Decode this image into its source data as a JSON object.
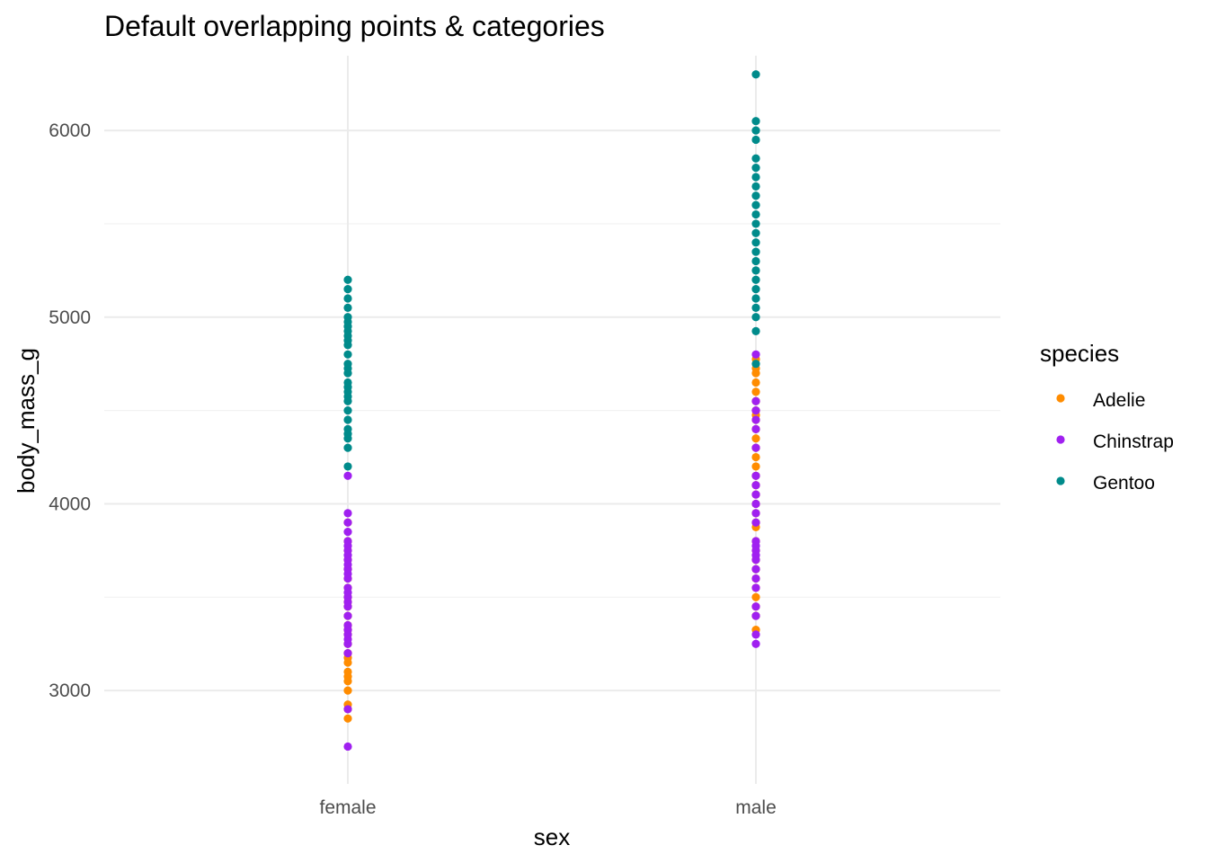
{
  "chart_data": {
    "type": "scatter",
    "title": "Default overlapping points & categories",
    "xlabel": "sex",
    "ylabel": "body_mass_g",
    "categories": [
      "female",
      "male"
    ],
    "ylim": [
      2500,
      6400
    ],
    "y_ticks": [
      3000,
      4000,
      5000,
      6000
    ],
    "grid": true,
    "legend": {
      "title": "species",
      "position": "right"
    },
    "series": [
      {
        "name": "Adelie",
        "color": "#FF8C00",
        "points": [
          {
            "x": "female",
            "y": 2850
          },
          {
            "x": "female",
            "y": 2900
          },
          {
            "x": "female",
            "y": 2925
          },
          {
            "x": "female",
            "y": 3000
          },
          {
            "x": "female",
            "y": 3050
          },
          {
            "x": "female",
            "y": 3075
          },
          {
            "x": "female",
            "y": 3100
          },
          {
            "x": "female",
            "y": 3150
          },
          {
            "x": "female",
            "y": 3175
          },
          {
            "x": "female",
            "y": 3200
          },
          {
            "x": "female",
            "y": 3250
          },
          {
            "x": "female",
            "y": 3300
          },
          {
            "x": "female",
            "y": 3325
          },
          {
            "x": "female",
            "y": 3350
          },
          {
            "x": "female",
            "y": 3400
          },
          {
            "x": "female",
            "y": 3450
          },
          {
            "x": "female",
            "y": 3475
          },
          {
            "x": "female",
            "y": 3500
          },
          {
            "x": "female",
            "y": 3550
          },
          {
            "x": "female",
            "y": 3600
          },
          {
            "x": "female",
            "y": 3650
          },
          {
            "x": "female",
            "y": 3700
          },
          {
            "x": "female",
            "y": 3750
          },
          {
            "x": "female",
            "y": 3800
          },
          {
            "x": "female",
            "y": 3900
          },
          {
            "x": "male",
            "y": 3325
          },
          {
            "x": "male",
            "y": 3400
          },
          {
            "x": "male",
            "y": 3450
          },
          {
            "x": "male",
            "y": 3500
          },
          {
            "x": "male",
            "y": 3550
          },
          {
            "x": "male",
            "y": 3600
          },
          {
            "x": "male",
            "y": 3650
          },
          {
            "x": "male",
            "y": 3700
          },
          {
            "x": "male",
            "y": 3750
          },
          {
            "x": "male",
            "y": 3800
          },
          {
            "x": "male",
            "y": 3875
          },
          {
            "x": "male",
            "y": 3900
          },
          {
            "x": "male",
            "y": 3950
          },
          {
            "x": "male",
            "y": 4000
          },
          {
            "x": "male",
            "y": 4050
          },
          {
            "x": "male",
            "y": 4100
          },
          {
            "x": "male",
            "y": 4150
          },
          {
            "x": "male",
            "y": 4200
          },
          {
            "x": "male",
            "y": 4250
          },
          {
            "x": "male",
            "y": 4300
          },
          {
            "x": "male",
            "y": 4350
          },
          {
            "x": "male",
            "y": 4400
          },
          {
            "x": "male",
            "y": 4450
          },
          {
            "x": "male",
            "y": 4475
          },
          {
            "x": "male",
            "y": 4500
          },
          {
            "x": "male",
            "y": 4550
          },
          {
            "x": "male",
            "y": 4600
          },
          {
            "x": "male",
            "y": 4650
          },
          {
            "x": "male",
            "y": 4700
          },
          {
            "x": "male",
            "y": 4725
          },
          {
            "x": "male",
            "y": 4775
          }
        ]
      },
      {
        "name": "Chinstrap",
        "color": "#A020F0",
        "points": [
          {
            "x": "female",
            "y": 2700
          },
          {
            "x": "female",
            "y": 2900
          },
          {
            "x": "female",
            "y": 3200
          },
          {
            "x": "female",
            "y": 3250
          },
          {
            "x": "female",
            "y": 3275
          },
          {
            "x": "female",
            "y": 3300
          },
          {
            "x": "female",
            "y": 3325
          },
          {
            "x": "female",
            "y": 3350
          },
          {
            "x": "female",
            "y": 3400
          },
          {
            "x": "female",
            "y": 3450
          },
          {
            "x": "female",
            "y": 3475
          },
          {
            "x": "female",
            "y": 3500
          },
          {
            "x": "female",
            "y": 3525
          },
          {
            "x": "female",
            "y": 3550
          },
          {
            "x": "female",
            "y": 3600
          },
          {
            "x": "female",
            "y": 3625
          },
          {
            "x": "female",
            "y": 3650
          },
          {
            "x": "female",
            "y": 3675
          },
          {
            "x": "female",
            "y": 3700
          },
          {
            "x": "female",
            "y": 3725
          },
          {
            "x": "female",
            "y": 3750
          },
          {
            "x": "female",
            "y": 3775
          },
          {
            "x": "female",
            "y": 3800
          },
          {
            "x": "female",
            "y": 3850
          },
          {
            "x": "female",
            "y": 3900
          },
          {
            "x": "female",
            "y": 3950
          },
          {
            "x": "female",
            "y": 4150
          },
          {
            "x": "male",
            "y": 3250
          },
          {
            "x": "male",
            "y": 3300
          },
          {
            "x": "male",
            "y": 3400
          },
          {
            "x": "male",
            "y": 3450
          },
          {
            "x": "male",
            "y": 3550
          },
          {
            "x": "male",
            "y": 3600
          },
          {
            "x": "male",
            "y": 3650
          },
          {
            "x": "male",
            "y": 3700
          },
          {
            "x": "male",
            "y": 3725
          },
          {
            "x": "male",
            "y": 3750
          },
          {
            "x": "male",
            "y": 3775
          },
          {
            "x": "male",
            "y": 3800
          },
          {
            "x": "male",
            "y": 3900
          },
          {
            "x": "male",
            "y": 3950
          },
          {
            "x": "male",
            "y": 4000
          },
          {
            "x": "male",
            "y": 4050
          },
          {
            "x": "male",
            "y": 4100
          },
          {
            "x": "male",
            "y": 4150
          },
          {
            "x": "male",
            "y": 4300
          },
          {
            "x": "male",
            "y": 4400
          },
          {
            "x": "male",
            "y": 4450
          },
          {
            "x": "male",
            "y": 4500
          },
          {
            "x": "male",
            "y": 4550
          },
          {
            "x": "male",
            "y": 4800
          }
        ]
      },
      {
        "name": "Gentoo",
        "color": "#008B8B",
        "points": [
          {
            "x": "female",
            "y": 4200
          },
          {
            "x": "female",
            "y": 4300
          },
          {
            "x": "female",
            "y": 4350
          },
          {
            "x": "female",
            "y": 4375
          },
          {
            "x": "female",
            "y": 4400
          },
          {
            "x": "female",
            "y": 4450
          },
          {
            "x": "female",
            "y": 4500
          },
          {
            "x": "female",
            "y": 4550
          },
          {
            "x": "female",
            "y": 4575
          },
          {
            "x": "female",
            "y": 4600
          },
          {
            "x": "female",
            "y": 4625
          },
          {
            "x": "female",
            "y": 4650
          },
          {
            "x": "female",
            "y": 4700
          },
          {
            "x": "female",
            "y": 4725
          },
          {
            "x": "female",
            "y": 4750
          },
          {
            "x": "female",
            "y": 4800
          },
          {
            "x": "female",
            "y": 4850
          },
          {
            "x": "female",
            "y": 4875
          },
          {
            "x": "female",
            "y": 4900
          },
          {
            "x": "female",
            "y": 4925
          },
          {
            "x": "female",
            "y": 4950
          },
          {
            "x": "female",
            "y": 4975
          },
          {
            "x": "female",
            "y": 5000
          },
          {
            "x": "female",
            "y": 5050
          },
          {
            "x": "female",
            "y": 5100
          },
          {
            "x": "female",
            "y": 5150
          },
          {
            "x": "female",
            "y": 5200
          },
          {
            "x": "male",
            "y": 4750
          },
          {
            "x": "male",
            "y": 4925
          },
          {
            "x": "male",
            "y": 5000
          },
          {
            "x": "male",
            "y": 5050
          },
          {
            "x": "male",
            "y": 5100
          },
          {
            "x": "male",
            "y": 5150
          },
          {
            "x": "male",
            "y": 5200
          },
          {
            "x": "male",
            "y": 5250
          },
          {
            "x": "male",
            "y": 5300
          },
          {
            "x": "male",
            "y": 5350
          },
          {
            "x": "male",
            "y": 5400
          },
          {
            "x": "male",
            "y": 5450
          },
          {
            "x": "male",
            "y": 5500
          },
          {
            "x": "male",
            "y": 5550
          },
          {
            "x": "male",
            "y": 5600
          },
          {
            "x": "male",
            "y": 5650
          },
          {
            "x": "male",
            "y": 5700
          },
          {
            "x": "male",
            "y": 5750
          },
          {
            "x": "male",
            "y": 5800
          },
          {
            "x": "male",
            "y": 5850
          },
          {
            "x": "male",
            "y": 5950
          },
          {
            "x": "male",
            "y": 6000
          },
          {
            "x": "male",
            "y": 6050
          },
          {
            "x": "male",
            "y": 6300
          }
        ]
      }
    ]
  }
}
